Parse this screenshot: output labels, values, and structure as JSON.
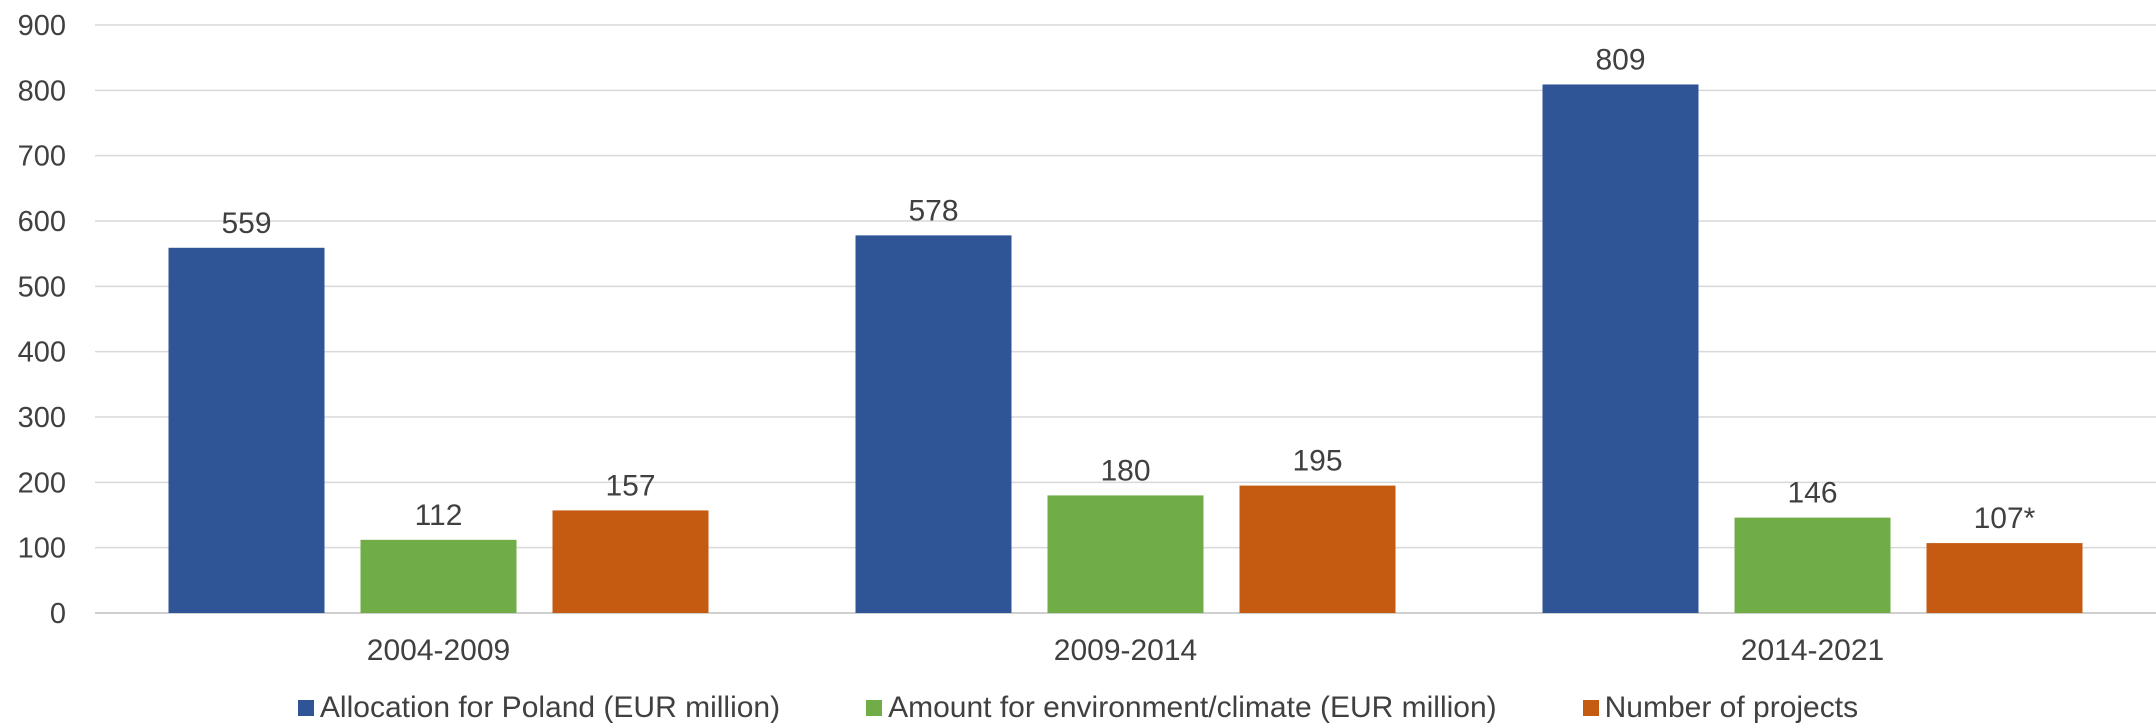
{
  "chart_data": {
    "type": "bar",
    "title": "",
    "xlabel": "",
    "ylabel": "",
    "categories": [
      "2004-2009",
      "2009-2014",
      "2014-2021"
    ],
    "series": [
      {
        "name": "Allocation for Poland (EUR million)",
        "color": "#2f5597",
        "values": [
          559,
          578,
          809
        ],
        "labels": [
          "559",
          "578",
          "809"
        ]
      },
      {
        "name": "Amount for environment/climate (EUR million)",
        "color": "#70ad47",
        "values": [
          112,
          180,
          146
        ],
        "labels": [
          "112",
          "180",
          "146"
        ]
      },
      {
        "name": "Number of projects",
        "color": "#c55a11",
        "values": [
          157,
          195,
          107
        ],
        "labels": [
          "157",
          "195",
          "107*"
        ]
      }
    ],
    "ylim": [
      0,
      900
    ],
    "yticks": [
      0,
      100,
      200,
      300,
      400,
      500,
      600,
      700,
      800,
      900
    ],
    "grid": true,
    "legend_position": "bottom"
  }
}
